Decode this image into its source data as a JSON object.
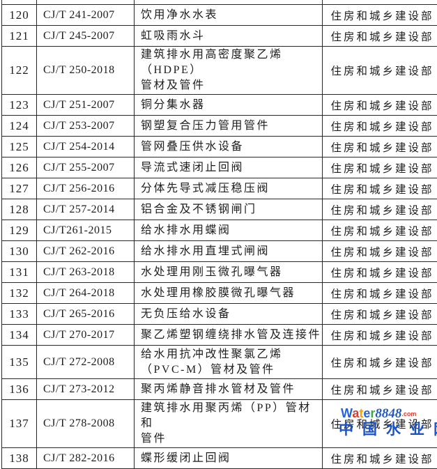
{
  "table": {
    "department_column_note": "issuing department shown for every row",
    "rows": [
      {
        "no": "120",
        "code": "CJ/T 241-2007",
        "name": "饮用净水水表",
        "dept": "住房和城乡建设部"
      },
      {
        "no": "121",
        "code": "CJ/T 245-2007",
        "name": "虹吸雨水斗",
        "dept": "住房和城乡建设部"
      },
      {
        "no": "122",
        "code": "CJ/T 250-2018",
        "name": "建筑排水用高密度聚乙烯（HDPE）\n管材及管件",
        "dept": "住房和城乡建设部"
      },
      {
        "no": "123",
        "code": "CJ/T 251-2007",
        "name": "铜分集水器",
        "dept": "住房和城乡建设部"
      },
      {
        "no": "124",
        "code": "CJ/T 253-2007",
        "name": "钢塑复合压力管用管件",
        "dept": "住房和城乡建设部"
      },
      {
        "no": "125",
        "code": "CJ/T 254-2014",
        "name": "管网叠压供水设备",
        "dept": "住房和城乡建设部"
      },
      {
        "no": "126",
        "code": "CJ/T 255-2007",
        "name": "导流式速闭止回阀",
        "dept": "住房和城乡建设部"
      },
      {
        "no": "127",
        "code": "CJ/T 256-2016",
        "name": "分体先导式减压稳压阀",
        "dept": "住房和城乡建设部"
      },
      {
        "no": "128",
        "code": "CJ/T 257-2014",
        "name": "铝合金及不锈钢闸门",
        "dept": "住房和城乡建设部"
      },
      {
        "no": "129",
        "code": "CJ/T261-2015",
        "name": "给水排水用蝶阀",
        "dept": "住房和城乡建设部"
      },
      {
        "no": "130",
        "code": "CJ/T 262-2016",
        "name": "给水排水用直埋式闸阀",
        "dept": "住房和城乡建设部"
      },
      {
        "no": "131",
        "code": "CJ/T 263-2018",
        "name": "水处理用刚玉微孔曝气器",
        "dept": "住房和城乡建设部"
      },
      {
        "no": "132",
        "code": "CJ/T 264-2018",
        "name": "水处理用橡胶膜微孔曝气器",
        "dept": "住房和城乡建设部"
      },
      {
        "no": "133",
        "code": "CJ/T 265-2016",
        "name": "无负压给水设备",
        "dept": "住房和城乡建设部"
      },
      {
        "no": "134",
        "code": "CJ/T 270-2017",
        "name": "聚乙烯塑钢缠绕排水管及连接件",
        "dept": "住房和城乡建设部"
      },
      {
        "no": "135",
        "code": "CJ/T 272-2008",
        "name": "给水用抗冲改性聚氯乙烯\n（PVC-M）管材及管件",
        "dept": "住房和城乡建设部"
      },
      {
        "no": "136",
        "code": "CJ/T 273-2012",
        "name": "聚丙烯静音排水管材及管件",
        "dept": "住房和城乡建设部"
      },
      {
        "no": "137",
        "code": "CJ/T 278-2008",
        "name": "建筑排水用聚丙烯（PP）管材和\n管件",
        "dept": "住房和城乡建设部"
      },
      {
        "no": "138",
        "code": "CJ/T 282-2016",
        "name": "蝶形缓闭止回阀",
        "dept": "住房和城乡建设部"
      }
    ]
  },
  "watermark": {
    "brand_letters": [
      {
        "char": "W",
        "color": "#2563d4"
      },
      {
        "char": "a",
        "color": "#e23a2a"
      },
      {
        "char": "t",
        "color": "#f2a30a"
      },
      {
        "char": "e",
        "color": "#2563d4"
      },
      {
        "char": "r",
        "color": "#3faa3f"
      }
    ],
    "brand_suffix": "8848",
    "brand_suffix_color": "#2159c0",
    "domain": ".com",
    "domain_color": "#e23a2a",
    "overlay_text": "中国水业网",
    "overlay_color": "#1a52c8"
  }
}
